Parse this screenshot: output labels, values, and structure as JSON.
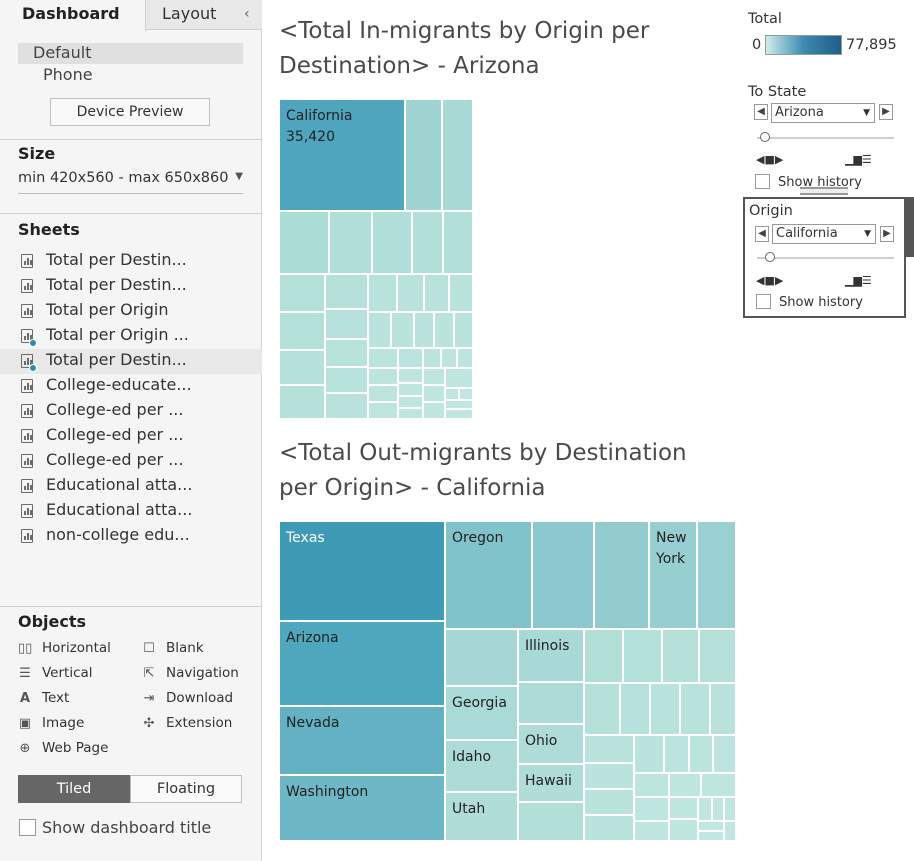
{
  "left_panel": {
    "tabs": {
      "dashboard": "Dashboard",
      "layout": "Layout",
      "collapse": "‹"
    },
    "device": {
      "default": "Default",
      "phone": "Phone",
      "preview_button": "Device Preview"
    },
    "size": {
      "title": "Size",
      "value": "min 420x560 - max 650x860"
    },
    "sheets": {
      "title": "Sheets",
      "items": [
        {
          "label": "Total per Destin...",
          "selected": false,
          "badge": false
        },
        {
          "label": "Total per Destin...",
          "selected": false,
          "badge": false
        },
        {
          "label": "Total per Origin",
          "selected": false,
          "badge": false
        },
        {
          "label": "Total per Origin ...",
          "selected": false,
          "badge": true
        },
        {
          "label": "Total per Destin...",
          "selected": true,
          "badge": true
        },
        {
          "label": "College-educate...",
          "selected": false,
          "badge": false
        },
        {
          "label": "College-ed per ...",
          "selected": false,
          "badge": false
        },
        {
          "label": "College-ed per ...",
          "selected": false,
          "badge": false
        },
        {
          "label": "College-ed per ...",
          "selected": false,
          "badge": false
        },
        {
          "label": "Educational atta...",
          "selected": false,
          "badge": false
        },
        {
          "label": "Educational atta...",
          "selected": false,
          "badge": false
        },
        {
          "label": "non-college edu...",
          "selected": false,
          "badge": false
        }
      ]
    },
    "objects": {
      "title": "Objects",
      "items": [
        {
          "label": "Horizontal",
          "icon": "horizontal-icon"
        },
        {
          "label": "Blank",
          "icon": "blank-icon"
        },
        {
          "label": "Vertical",
          "icon": "vertical-icon"
        },
        {
          "label": "Navigation",
          "icon": "navigation-icon"
        },
        {
          "label": "Text",
          "icon": "text-icon"
        },
        {
          "label": "Download",
          "icon": "download-icon"
        },
        {
          "label": "Image",
          "icon": "image-icon"
        },
        {
          "label": "Extension",
          "icon": "extension-icon"
        },
        {
          "label": "Web Page",
          "icon": "globe-icon"
        }
      ]
    },
    "mode": {
      "tiled": "Tiled",
      "floating": "Floating"
    },
    "show_title": "Show dashboard title"
  },
  "main": {
    "title1_line1": "<Total In-migrants by Origin per",
    "title1_line2": "Destination> - Arizona",
    "title2_line1": "<Total Out-migrants by Destination",
    "title2_line2": "per Origin> - California",
    "treemap1": {
      "labels": {
        "california": "California",
        "california_value": "35,420"
      }
    },
    "treemap2": {
      "labels": {
        "texas": "Texas",
        "oregon": "Oregon",
        "new_york": "New\nYork",
        "arizona": "Arizona",
        "illinois": "Illinois",
        "nevada": "Nevada",
        "georgia": "Georgia",
        "ohio": "Ohio",
        "idaho": "Idaho",
        "hawaii": "Hawaii",
        "washington": "Washington",
        "utah": "Utah"
      }
    }
  },
  "legend": {
    "title": "Total",
    "min": "0",
    "max": "77,895",
    "colors": {
      "low": "#cdeeea",
      "mid": "#3d8ab2",
      "high": "#1f5e8a"
    }
  },
  "filters": {
    "to_state": {
      "title": "To State",
      "value": "Arizona",
      "show_history": "Show history"
    },
    "origin": {
      "title": "Origin",
      "value": "California",
      "show_history": "Show history"
    }
  }
}
